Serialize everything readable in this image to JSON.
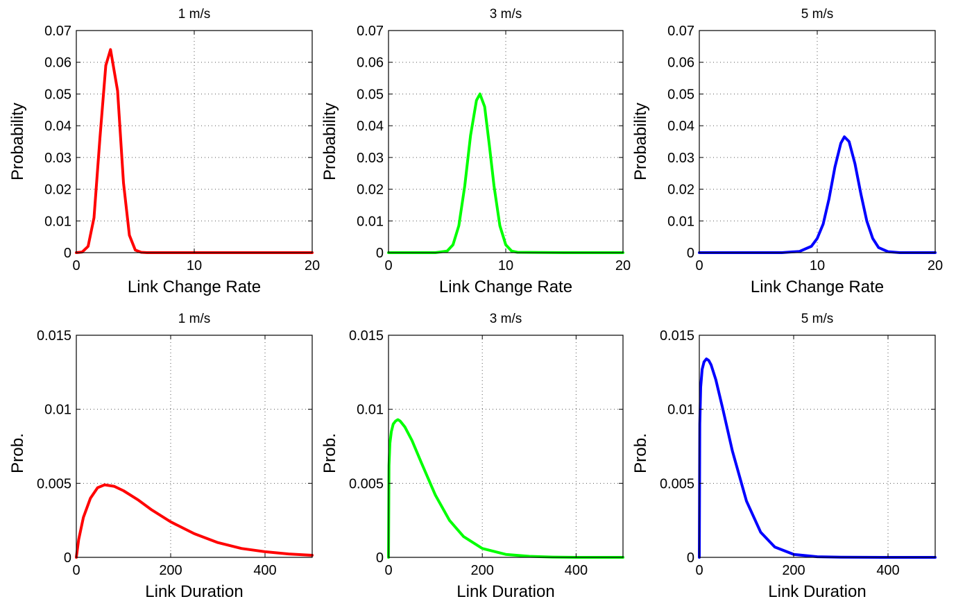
{
  "chart_data": [
    {
      "type": "line",
      "title": "1 m/s",
      "xlabel": "Link Change Rate",
      "ylabel": "Probability",
      "xlim": [
        0,
        20
      ],
      "ylim": [
        0,
        0.07
      ],
      "xticks": [
        "0",
        "10",
        "20"
      ],
      "yticks": [
        "0",
        "0.01",
        "0.02",
        "0.03",
        "0.04",
        "0.05",
        "0.06",
        "0.07"
      ],
      "grid": true,
      "series": [
        {
          "color": "#ff0000",
          "x": [
            0,
            0.5,
            1.0,
            1.5,
            2.0,
            2.5,
            2.9,
            3.5,
            4.0,
            4.5,
            5.0,
            5.5,
            6.0,
            10,
            15,
            20
          ],
          "values": [
            0,
            0.0002,
            0.002,
            0.011,
            0.036,
            0.059,
            0.064,
            0.051,
            0.022,
            0.0055,
            0.0008,
            0.0001,
            0,
            0,
            0,
            0
          ]
        }
      ]
    },
    {
      "type": "line",
      "title": "3 m/s",
      "xlabel": "Link Change Rate",
      "ylabel": "Probability",
      "xlim": [
        0,
        20
      ],
      "ylim": [
        0,
        0.07
      ],
      "xticks": [
        "0",
        "10",
        "20"
      ],
      "yticks": [
        "0",
        "0.01",
        "0.02",
        "0.03",
        "0.04",
        "0.05",
        "0.06",
        "0.07"
      ],
      "grid": true,
      "series": [
        {
          "color": "#00ff00",
          "x": [
            0,
            4.0,
            5.0,
            5.5,
            6.0,
            6.5,
            7.0,
            7.5,
            7.8,
            8.2,
            8.6,
            9.0,
            9.5,
            10.0,
            10.5,
            11.0,
            15,
            20
          ],
          "values": [
            0,
            0,
            0.0005,
            0.0025,
            0.0085,
            0.021,
            0.037,
            0.048,
            0.05,
            0.046,
            0.034,
            0.021,
            0.0085,
            0.0025,
            0.0005,
            0.0001,
            0,
            0
          ]
        }
      ]
    },
    {
      "type": "line",
      "title": "5 m/s",
      "xlabel": "Link Change Rate",
      "ylabel": "Probability",
      "xlim": [
        0,
        20
      ],
      "ylim": [
        0,
        0.07
      ],
      "xticks": [
        "0",
        "10",
        "20"
      ],
      "yticks": [
        "0",
        "0.01",
        "0.02",
        "0.03",
        "0.04",
        "0.05",
        "0.06",
        "0.07"
      ],
      "grid": true,
      "series": [
        {
          "color": "#0000ff",
          "x": [
            0,
            7.0,
            8.5,
            9.5,
            10.0,
            10.5,
            11.0,
            11.5,
            12.0,
            12.3,
            12.7,
            13.2,
            13.7,
            14.2,
            14.7,
            15.2,
            16.0,
            17.0,
            20
          ],
          "values": [
            0,
            0,
            0.0004,
            0.002,
            0.0045,
            0.009,
            0.017,
            0.027,
            0.0345,
            0.0365,
            0.035,
            0.028,
            0.0185,
            0.01,
            0.0045,
            0.0016,
            0.0003,
            0,
            0
          ]
        }
      ]
    },
    {
      "type": "line",
      "title": "1 m/s",
      "xlabel": "Link Duration",
      "ylabel": "Prob.",
      "xlim": [
        0,
        500
      ],
      "ylim": [
        0,
        0.015
      ],
      "xticks": [
        "0",
        "200",
        "400"
      ],
      "yticks": [
        "0",
        "0.005",
        "0.01",
        "0.015"
      ],
      "grid": true,
      "series": [
        {
          "color": "#ff0000",
          "x": [
            0,
            5,
            15,
            30,
            45,
            60,
            80,
            100,
            130,
            160,
            200,
            250,
            300,
            350,
            400,
            450,
            500
          ],
          "values": [
            0,
            0.0012,
            0.0027,
            0.004,
            0.0047,
            0.0049,
            0.0048,
            0.0045,
            0.0039,
            0.0032,
            0.0024,
            0.0016,
            0.001,
            0.0006,
            0.00038,
            0.00023,
            0.00014
          ]
        }
      ]
    },
    {
      "type": "line",
      "title": "3 m/s",
      "xlabel": "Link Duration",
      "ylabel": "Prob.",
      "xlim": [
        0,
        500
      ],
      "ylim": [
        0,
        0.015
      ],
      "xticks": [
        "0",
        "200",
        "400"
      ],
      "yticks": [
        "0",
        "0.005",
        "0.01",
        "0.015"
      ],
      "grid": true,
      "series": [
        {
          "color": "#00ff00",
          "x": [
            0,
            1,
            3,
            6,
            10,
            15,
            20,
            25,
            35,
            50,
            70,
            100,
            130,
            160,
            200,
            250,
            300,
            350,
            400,
            500
          ],
          "values": [
            0,
            0.0062,
            0.0077,
            0.0085,
            0.009,
            0.0092,
            0.0093,
            0.0092,
            0.0088,
            0.0079,
            0.0064,
            0.0042,
            0.0025,
            0.0014,
            0.0006,
            0.0002,
            7e-05,
            2e-05,
            0,
            0
          ]
        }
      ]
    },
    {
      "type": "line",
      "title": "5 m/s",
      "xlabel": "Link Duration",
      "ylabel": "Prob.",
      "xlim": [
        0,
        500
      ],
      "ylim": [
        0,
        0.015
      ],
      "xticks": [
        "0",
        "200",
        "400"
      ],
      "yticks": [
        "0",
        "0.005",
        "0.01",
        "0.015"
      ],
      "grid": true,
      "series": [
        {
          "color": "#0000ff",
          "x": [
            0,
            1,
            3,
            6,
            10,
            15,
            20,
            25,
            35,
            50,
            70,
            100,
            130,
            160,
            200,
            250,
            300,
            400,
            500
          ],
          "values": [
            0,
            0.009,
            0.0115,
            0.0127,
            0.0132,
            0.0134,
            0.0133,
            0.013,
            0.012,
            0.01,
            0.0072,
            0.0038,
            0.0017,
            0.0007,
            0.0002,
            4e-05,
            1e-05,
            0,
            0
          ]
        }
      ]
    }
  ]
}
